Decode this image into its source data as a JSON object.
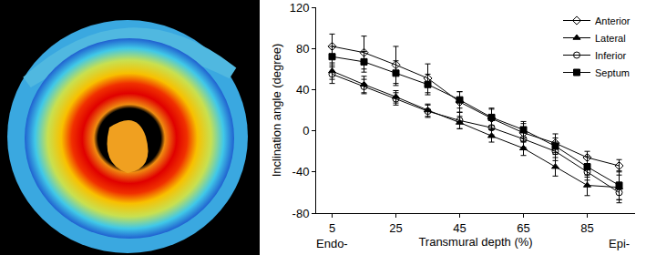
{
  "chart_data": {
    "type": "line",
    "x_label": "Transmural depth (%)",
    "y_label": "Inclination angle (degree)",
    "annotations": [
      "Endo-",
      "Epi-"
    ],
    "x": [
      5,
      15,
      25,
      35,
      45,
      55,
      65,
      75,
      85,
      95
    ],
    "series": [
      {
        "name": "Anterior",
        "color": "#000000",
        "marker": "diamond-open",
        "values": [
          82,
          76,
          64,
          51,
          28,
          12,
          -2,
          -12,
          -26,
          -34
        ],
        "error": [
          12,
          16,
          18,
          14,
          10,
          10,
          9,
          9,
          6,
          6
        ]
      },
      {
        "name": "Lateral",
        "color": "#000000",
        "marker": "triangle",
        "values": [
          58,
          45,
          33,
          20,
          8,
          -5,
          -17,
          -35,
          -53,
          -55
        ],
        "error": [
          8,
          8,
          6,
          6,
          6,
          6,
          7,
          9,
          10,
          12
        ]
      },
      {
        "name": "Inferior",
        "color": "#000000",
        "marker": "circle-open",
        "values": [
          55,
          43,
          31,
          19,
          10,
          3,
          -8,
          -20,
          -40,
          -60
        ],
        "error": [
          9,
          7,
          6,
          6,
          8,
          7,
          8,
          9,
          8,
          10
        ]
      },
      {
        "name": "Septum",
        "color": "#000000",
        "marker": "square",
        "values": [
          72,
          67,
          56,
          45,
          30,
          13,
          1,
          -15,
          -35,
          -53
        ],
        "error": [
          10,
          10,
          12,
          10,
          8,
          8,
          8,
          8,
          10,
          14
        ]
      }
    ],
    "xlim": [
      0,
      100
    ],
    "xticks": [
      5,
      25,
      45,
      65,
      85
    ],
    "ylim": [
      -80,
      120
    ],
    "yticks": [
      -80,
      -40,
      0,
      40,
      80,
      120
    ],
    "grid": false,
    "legend": "top right"
  }
}
